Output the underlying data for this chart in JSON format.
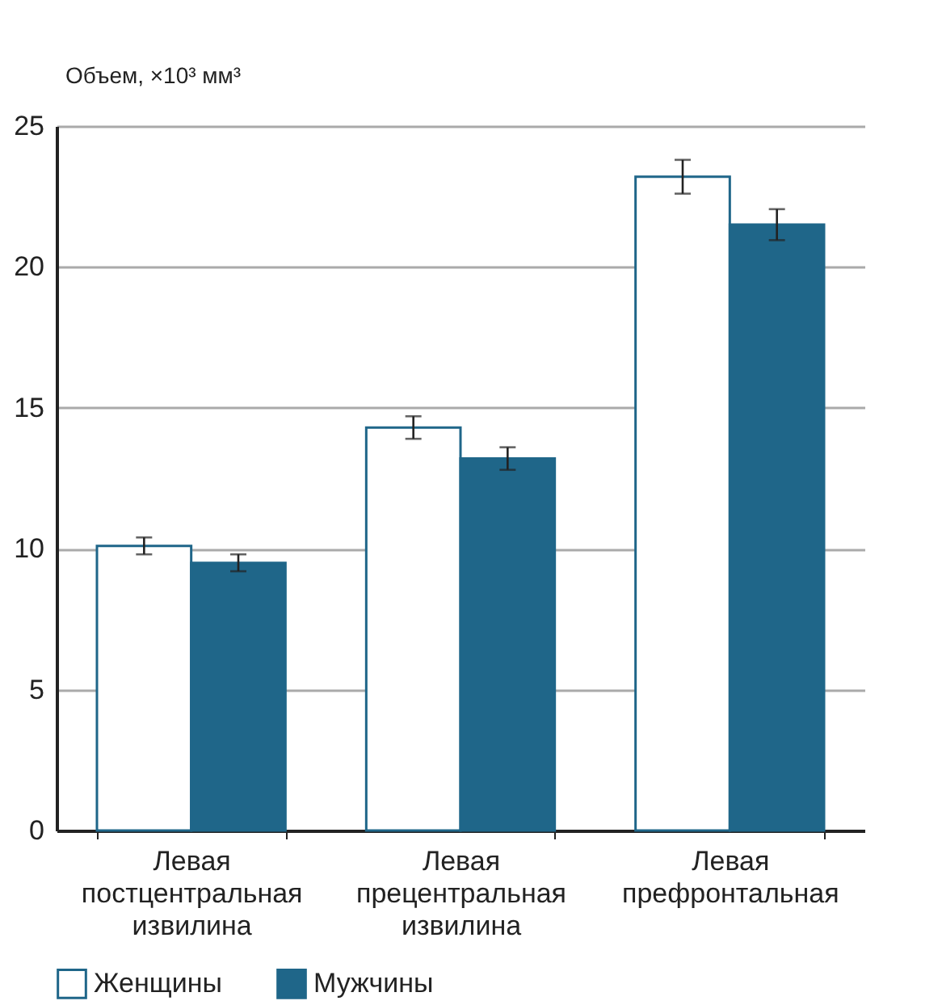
{
  "chart_data": {
    "type": "bar",
    "ylabel": "Объем, ×10³ мм³",
    "categories": [
      "Левая постцентральная извилина",
      "Левая прецентральная извилина",
      "Левая префронтальная"
    ],
    "series": [
      {
        "name": "Женщины",
        "color": "#ffffff",
        "values": [
          10.1,
          14.3,
          23.2
        ],
        "errors": [
          0.3,
          0.4,
          0.6
        ]
      },
      {
        "name": "Мужчины",
        "color": "#1f6689",
        "values": [
          9.5,
          13.2,
          21.5
        ],
        "errors": [
          0.3,
          0.4,
          0.55
        ]
      }
    ],
    "ylim": [
      0,
      25
    ],
    "yticks": [
      0,
      5,
      10,
      15,
      20,
      25
    ],
    "grid": "y",
    "legend": "bottom"
  }
}
